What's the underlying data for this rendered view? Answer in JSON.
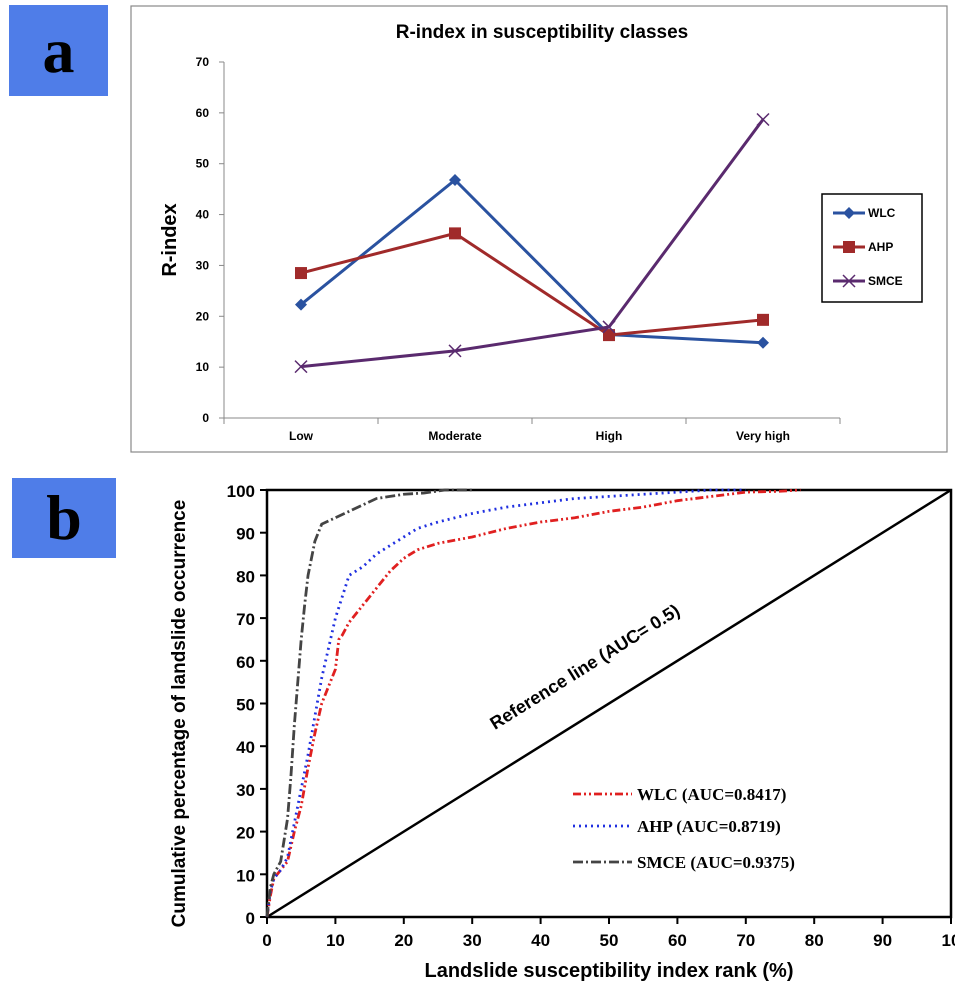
{
  "panels": {
    "a_label": "a",
    "b_label": "b"
  },
  "chart_data": [
    {
      "type": "line",
      "title": "R-index in susceptibility classes",
      "xlabel": "",
      "ylabel": "R-index",
      "categories": [
        "Low",
        "Moderate",
        "High",
        "Very high"
      ],
      "ylim": [
        0,
        70
      ],
      "yticks": [
        0,
        10,
        20,
        30,
        40,
        50,
        60,
        70
      ],
      "legend_position": "right",
      "series": [
        {
          "name": "WLC",
          "color": "#2a52a0",
          "marker": "diamond",
          "values": [
            22.3,
            46.8,
            16.4,
            14.8
          ]
        },
        {
          "name": "AHP",
          "color": "#a02a2a",
          "marker": "square",
          "values": [
            28.5,
            36.3,
            16.3,
            19.3
          ]
        },
        {
          "name": "SMCE",
          "color": "#5a2a6e",
          "marker": "x",
          "values": [
            10.1,
            13.2,
            17.9,
            58.7
          ]
        }
      ]
    },
    {
      "type": "line",
      "xlabel": "Landslide susceptibility index rank (%)",
      "ylabel": "Cumulative percentage of landslide occurrence",
      "xlim": [
        0,
        100
      ],
      "ylim": [
        0,
        100
      ],
      "xticks": [
        0,
        10,
        20,
        30,
        40,
        50,
        60,
        70,
        80,
        90
      ],
      "xtick_last_label": "10",
      "yticks": [
        0,
        10,
        20,
        30,
        40,
        50,
        60,
        70,
        80,
        90,
        100
      ],
      "reference_label": "Reference line (AUC= 0.5)",
      "reference": {
        "x": [
          0,
          100
        ],
        "y": [
          0,
          100
        ]
      },
      "legend_position": "lower-right",
      "series": [
        {
          "name": "WLC (AUC=0.8417)",
          "color": "#e02020",
          "dash": "8,3,2,3,2,3",
          "x": [
            0,
            0.5,
            1,
            2,
            3,
            4,
            5,
            6,
            7,
            8,
            9,
            10,
            10.5,
            11,
            12,
            14,
            16,
            18,
            20,
            22,
            25,
            30,
            35,
            40,
            45,
            50,
            55,
            60,
            65,
            70,
            75,
            78
          ],
          "y": [
            0,
            5,
            9,
            11,
            13,
            20,
            26,
            35,
            43,
            50,
            54,
            58,
            65,
            66,
            69,
            73,
            77,
            81,
            84,
            86,
            87.5,
            89,
            91,
            92.5,
            93.5,
            95,
            96,
            97.5,
            98.5,
            99.5,
            99.7,
            100
          ]
        },
        {
          "name": "AHP (AUC=0.8719)",
          "color": "#2030e0",
          "dash": "2,4",
          "x": [
            0,
            0.5,
            1,
            2,
            3,
            4,
            5,
            6,
            7,
            8,
            9,
            10,
            11,
            12,
            14,
            16,
            18,
            20,
            22,
            25,
            30,
            35,
            40,
            45,
            50,
            55,
            60,
            65,
            70
          ],
          "y": [
            0,
            6,
            9,
            11,
            14,
            22,
            30,
            38,
            47,
            56,
            63,
            70,
            75,
            80,
            82,
            85,
            87,
            89,
            91,
            92.5,
            94.5,
            96,
            97,
            98,
            98.5,
            99,
            99.5,
            100,
            100
          ]
        },
        {
          "name": "SMCE (AUC=0.9375)",
          "color": "#444444",
          "dash": "10,3,2,3",
          "x": [
            0,
            0.5,
            1,
            2,
            3,
            3.5,
            4,
            4.5,
            5,
            5.5,
            6,
            7,
            8,
            10,
            12,
            14,
            16,
            18,
            20,
            23,
            26,
            30
          ],
          "y": [
            0,
            7,
            10,
            13,
            23,
            33,
            45,
            55,
            65,
            73,
            80,
            88,
            92,
            93.5,
            95,
            96.5,
            98,
            98.5,
            99,
            99.3,
            100,
            100
          ]
        }
      ]
    }
  ]
}
